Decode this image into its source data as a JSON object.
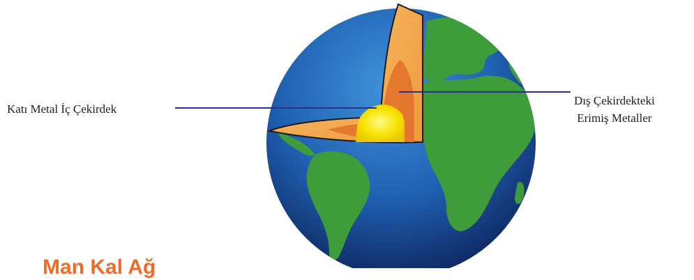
{
  "labels": {
    "inner_core": "Katı Metal İç Çekirdek",
    "outer_core_line1": "Dış Çekirdekteki",
    "outer_core_line2": "Erimiş Metaller"
  },
  "bottom_title": "Man Kal Ağ",
  "colors": {
    "ocean_deep": "#0f2a6b",
    "ocean_light": "#2f7fcf",
    "land": "#3e9d3a",
    "mantle": "#f2a24a",
    "outer_core": "#e2752c",
    "inner_core": "#f7e300",
    "leader_line": "#2b2f8f",
    "title_orange": "#f06a28"
  }
}
